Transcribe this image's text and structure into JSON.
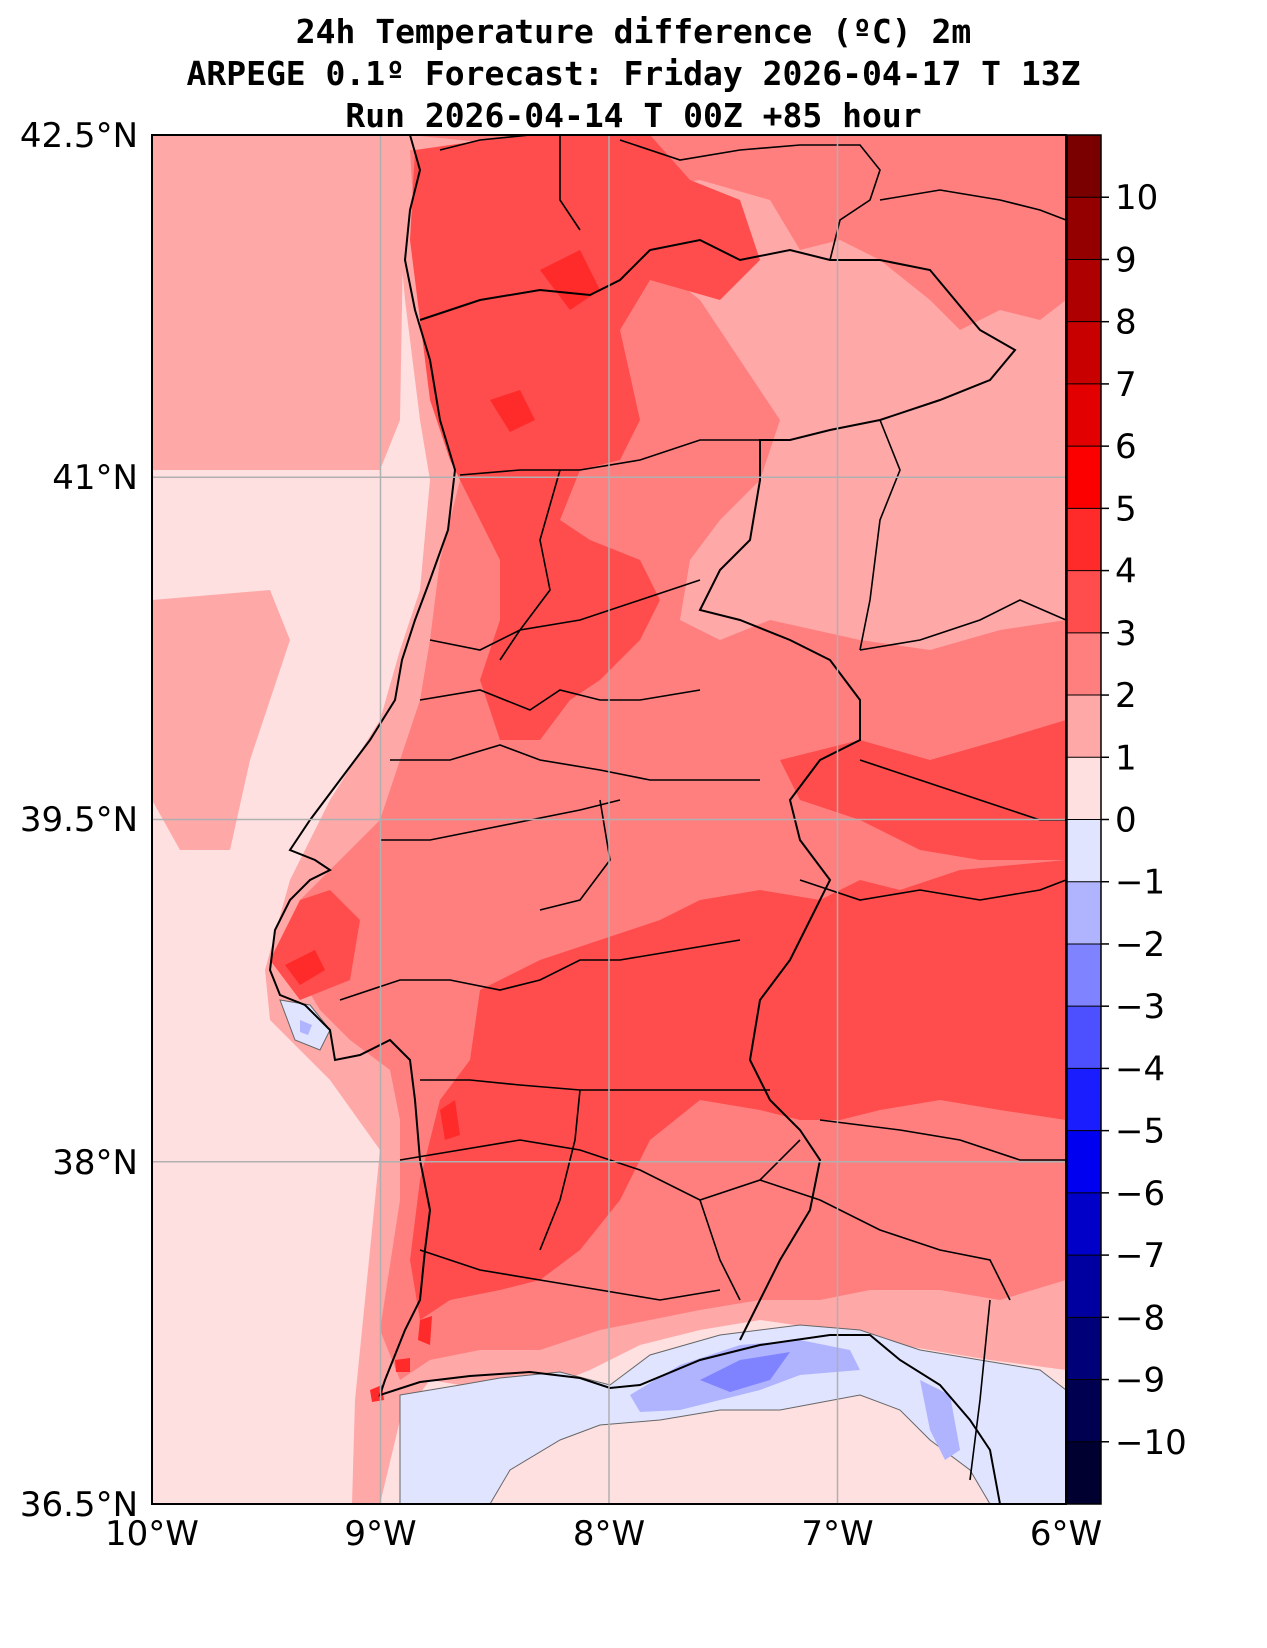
{
  "title": {
    "line1": "24h Temperature difference (ºC) 2m",
    "line2": "ARPEGE 0.1º Forecast: Friday 2026-04-17 T 13Z",
    "line3": "Run 2026-04-14 T 00Z +85 hour"
  },
  "map": {
    "lat_labels": [
      "42.5°N",
      "41°N",
      "39.5°N",
      "38°N",
      "36.5°N"
    ],
    "lon_labels": [
      "10°W",
      "9°W",
      "8°W",
      "7°W",
      "6°W"
    ],
    "lat_values": [
      42.5,
      41,
      39.5,
      38,
      36.5
    ],
    "lon_values": [
      -10,
      -9,
      -8,
      -7,
      -6
    ]
  },
  "colorbar": {
    "labels": [
      "10",
      "9",
      "8",
      "7",
      "6",
      "5",
      "4",
      "3",
      "2",
      "1",
      "0",
      "−1",
      "−2",
      "−3",
      "−4",
      "−5",
      "−6",
      "−7",
      "−8",
      "−9",
      "−10"
    ],
    "levels_top_to_bottom": [
      11,
      10,
      9,
      8,
      7,
      6,
      5,
      4,
      3,
      2,
      1,
      0,
      -1,
      -2,
      -3,
      -4,
      -5,
      -6,
      -7,
      -8,
      -9,
      -10,
      -11
    ],
    "colors_top_to_bottom": [
      "#7a0000",
      "#940000",
      "#ae0000",
      "#c80000",
      "#e20000",
      "#fc0000",
      "#ff2a2a",
      "#ff4c4c",
      "#ff7f7f",
      "#ffa8a8",
      "#ffe0e0",
      "#e0e4ff",
      "#b0b4ff",
      "#7f83ff",
      "#4c50ff",
      "#1a1eff",
      "#0000f0",
      "#0000c8",
      "#0000a0",
      "#000078",
      "#000050",
      "#000030"
    ]
  },
  "colors": {
    "pos0_1": "#ffe0e0",
    "pos1_2": "#ffa8a8",
    "pos2_3": "#ff7f7f",
    "pos3_4": "#ff4c4c",
    "pos4_5": "#ff2a2a",
    "neg0_1": "#e0e4ff",
    "neg1_2": "#b0b4ff",
    "neg2_3": "#7f83ff"
  }
}
